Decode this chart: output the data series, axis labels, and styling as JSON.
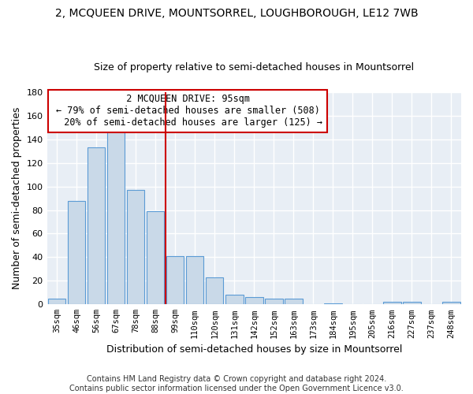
{
  "title": "2, MCQUEEN DRIVE, MOUNTSORREL, LOUGHBOROUGH, LE12 7WB",
  "subtitle": "Size of property relative to semi-detached houses in Mountsorrel",
  "xlabel": "Distribution of semi-detached houses by size in Mountsorrel",
  "ylabel": "Number of semi-detached properties",
  "categories": [
    "35sqm",
    "46sqm",
    "56sqm",
    "67sqm",
    "78sqm",
    "88sqm",
    "99sqm",
    "110sqm",
    "120sqm",
    "131sqm",
    "142sqm",
    "152sqm",
    "163sqm",
    "173sqm",
    "184sqm",
    "195sqm",
    "205sqm",
    "216sqm",
    "227sqm",
    "237sqm",
    "248sqm"
  ],
  "values": [
    5,
    88,
    133,
    148,
    97,
    79,
    41,
    41,
    23,
    8,
    6,
    5,
    5,
    0,
    1,
    0,
    0,
    2,
    2,
    0,
    2
  ],
  "bar_color": "#c9d9e8",
  "bar_edge_color": "#5b9bd5",
  "property_label": "2 MCQUEEN DRIVE: 95sqm",
  "pct_smaller": 79,
  "n_smaller": 508,
  "pct_larger": 20,
  "n_larger": 125,
  "vline_x_index": 6,
  "vline_color": "#cc0000",
  "ylim": [
    0,
    180
  ],
  "yticks": [
    0,
    20,
    40,
    60,
    80,
    100,
    120,
    140,
    160,
    180
  ],
  "bg_color": "#e8eef5",
  "grid_color": "#ffffff",
  "footer": "Contains HM Land Registry data © Crown copyright and database right 2024.\nContains public sector information licensed under the Open Government Licence v3.0.",
  "title_fontsize": 10,
  "subtitle_fontsize": 9,
  "axis_label_fontsize": 9,
  "tick_fontsize": 7.5,
  "annotation_fontsize": 8.5
}
